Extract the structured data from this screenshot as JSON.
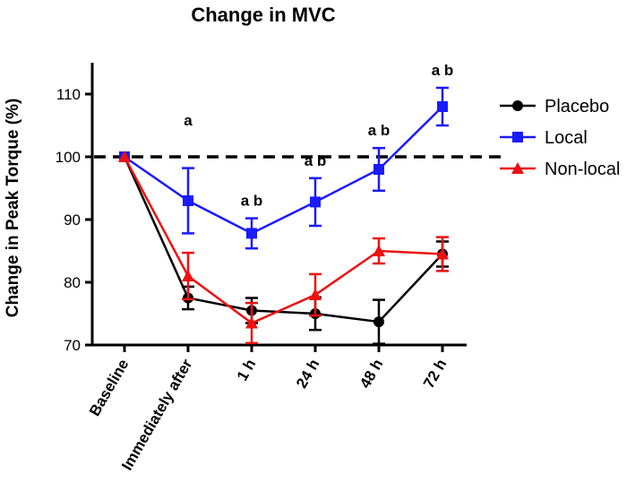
{
  "chart_data": {
    "type": "line",
    "title": "Change in MVC",
    "xlabel": "",
    "ylabel": "Change in Peak Torque (%)",
    "categories": [
      "Baseline",
      "Immediately after",
      "1 h",
      "24 h",
      "48 h",
      "72 h"
    ],
    "ylim": [
      70,
      115
    ],
    "yticks": [
      70,
      80,
      90,
      100,
      110
    ],
    "reference_line": {
      "value": 100,
      "style": "dashed"
    },
    "series": [
      {
        "name": "Placebo",
        "color": "#000000",
        "marker": "circle",
        "values": [
          100,
          77.5,
          75.5,
          75,
          73.7,
          84.5
        ],
        "errors": [
          0,
          1.8,
          2,
          2.6,
          3.5,
          2
        ]
      },
      {
        "name": "Local",
        "color": "#1a1aff",
        "marker": "square",
        "values": [
          100,
          93,
          87.8,
          92.8,
          98,
          108
        ],
        "errors": [
          0,
          5.2,
          2.4,
          3.8,
          3.4,
          3
        ]
      },
      {
        "name": "Non-local",
        "color": "#ee1111",
        "marker": "triangle",
        "values": [
          100,
          81,
          73.5,
          78,
          85,
          84.5
        ],
        "errors": [
          0,
          3.7,
          3.2,
          3.3,
          2,
          2.7
        ]
      }
    ],
    "annotations": [
      {
        "category": "Immediately after",
        "text": "a"
      },
      {
        "category": "1 h",
        "text": "a b"
      },
      {
        "category": "24 h",
        "text": "a b"
      },
      {
        "category": "48 h",
        "text": "a b"
      },
      {
        "category": "72 h",
        "text": "a b"
      }
    ],
    "legend_position": "right"
  }
}
